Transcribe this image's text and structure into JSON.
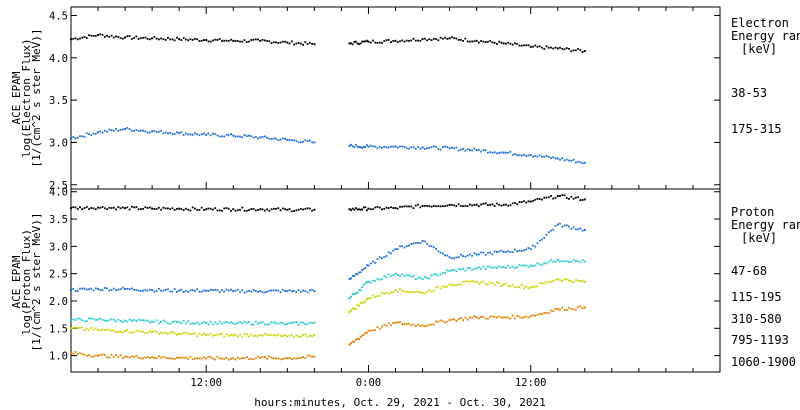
{
  "xlabel": "hours:minutes, Oct. 29, 2021 - Oct. 30, 2021",
  "x_ticks": [
    "12:00",
    "0:00",
    "12:00"
  ],
  "chart_data": [
    {
      "type": "scatter",
      "ylabel": [
        "ACE EPAM",
        "log(Electron Flux)",
        "[1/(cm^2 s ster MeV)]"
      ],
      "ylim": [
        2.45,
        4.6
      ],
      "y_ticks": [
        "2.5",
        "3.0",
        "3.5",
        "4.0",
        "4.5"
      ],
      "legend_title": [
        "Electron",
        "Energy range",
        "[keV]"
      ],
      "data_gap": {
        "start": 18.3,
        "end": 20.5
      },
      "series": [
        {
          "name": "38-53",
          "color": "#000000",
          "x": [
            0,
            2,
            4,
            6,
            8,
            10,
            12,
            14,
            16,
            18,
            20.6,
            22,
            24,
            26,
            28,
            30,
            32,
            34,
            36,
            38
          ],
          "y": [
            4.22,
            4.27,
            4.24,
            4.23,
            4.22,
            4.21,
            4.2,
            4.2,
            4.18,
            4.16,
            4.17,
            4.19,
            4.2,
            4.22,
            4.23,
            4.2,
            4.17,
            4.13,
            4.11,
            4.08
          ]
        },
        {
          "name": "175-315",
          "color": "#1f6fd4",
          "x": [
            0,
            2,
            4,
            6,
            8,
            10,
            12,
            14,
            16,
            18,
            20.6,
            22,
            24,
            26,
            28,
            30,
            32,
            34,
            36,
            38
          ],
          "y": [
            3.05,
            3.12,
            3.16,
            3.13,
            3.11,
            3.09,
            3.08,
            3.06,
            3.03,
            3.0,
            2.96,
            2.95,
            2.95,
            2.94,
            2.93,
            2.91,
            2.88,
            2.85,
            2.81,
            2.76
          ]
        }
      ]
    },
    {
      "type": "scatter",
      "ylabel": [
        "ACE EPAM",
        "log(Proton Flux)",
        "[1/(cm^2 s ster MeV)]"
      ],
      "ylim": [
        0.7,
        4.05
      ],
      "y_ticks": [
        "1.0",
        "1.5",
        "2.0",
        "2.5",
        "3.0",
        "3.5",
        "4.0"
      ],
      "legend_title": [
        "Proton",
        "Energy range",
        "[keV]"
      ],
      "data_gap": {
        "start": 18.3,
        "end": 20.5
      },
      "series": [
        {
          "name": "47-68",
          "color": "#000000",
          "x": [
            0,
            2,
            4,
            6,
            8,
            10,
            12,
            14,
            16,
            18,
            20.6,
            22,
            24,
            26,
            28,
            30,
            32,
            34,
            36,
            38
          ],
          "y": [
            3.7,
            3.71,
            3.7,
            3.69,
            3.69,
            3.68,
            3.68,
            3.68,
            3.67,
            3.67,
            3.68,
            3.69,
            3.7,
            3.74,
            3.76,
            3.76,
            3.76,
            3.82,
            3.92,
            3.86
          ]
        },
        {
          "name": "115-195",
          "color": "#1f6fd4",
          "x": [
            0,
            2,
            4,
            6,
            8,
            10,
            12,
            14,
            16,
            18,
            20.6,
            22,
            24,
            26,
            28,
            30,
            32,
            34,
            36,
            38
          ],
          "y": [
            2.2,
            2.22,
            2.22,
            2.2,
            2.19,
            2.19,
            2.18,
            2.18,
            2.18,
            2.18,
            2.4,
            2.65,
            2.95,
            3.1,
            2.8,
            2.85,
            2.9,
            2.95,
            3.4,
            3.3
          ]
        },
        {
          "name": "310-580",
          "color": "#22cccc",
          "x": [
            0,
            2,
            4,
            6,
            8,
            10,
            12,
            14,
            16,
            18,
            20.6,
            22,
            24,
            26,
            28,
            30,
            32,
            34,
            36,
            38
          ],
          "y": [
            1.65,
            1.66,
            1.64,
            1.62,
            1.61,
            1.6,
            1.59,
            1.6,
            1.58,
            1.6,
            2.05,
            2.35,
            2.5,
            2.4,
            2.55,
            2.6,
            2.62,
            2.65,
            2.75,
            2.72
          ]
        },
        {
          "name": "795-1193",
          "color": "#c8d400",
          "x": [
            0,
            2,
            4,
            6,
            8,
            10,
            12,
            14,
            16,
            18,
            20.6,
            22,
            24,
            26,
            28,
            30,
            32,
            34,
            36,
            38
          ],
          "y": [
            1.5,
            1.47,
            1.45,
            1.43,
            1.4,
            1.38,
            1.37,
            1.38,
            1.35,
            1.38,
            1.8,
            2.05,
            2.2,
            2.15,
            2.3,
            2.35,
            2.3,
            2.25,
            2.4,
            2.35
          ]
        },
        {
          "name": "1060-1900",
          "color": "#e67e00",
          "x": [
            0,
            2,
            4,
            6,
            8,
            10,
            12,
            14,
            16,
            18,
            20.6,
            22,
            24,
            26,
            28,
            30,
            32,
            34,
            36,
            38
          ],
          "y": [
            1.05,
            1.0,
            0.98,
            0.97,
            0.96,
            0.95,
            0.95,
            0.96,
            0.95,
            0.98,
            1.2,
            1.45,
            1.6,
            1.55,
            1.65,
            1.7,
            1.7,
            1.72,
            1.85,
            1.88
          ]
        }
      ]
    }
  ]
}
